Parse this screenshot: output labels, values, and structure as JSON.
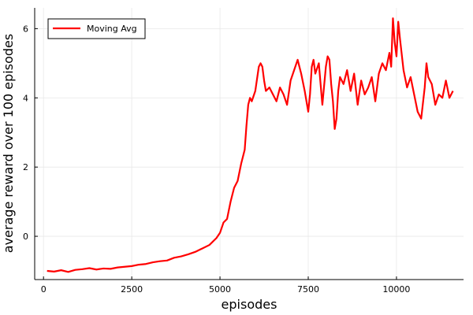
{
  "chart_data": {
    "type": "line",
    "title": "",
    "xlabel": "episodes",
    "ylabel": "average reward over 100 episodes",
    "xlim": [
      -250,
      11900
    ],
    "ylim": [
      -1.25,
      6.6
    ],
    "xticks": [
      0,
      2500,
      5000,
      7500,
      10000
    ],
    "xtick_labels": [
      "0",
      "2500",
      "5000",
      "7500",
      "10000"
    ],
    "yticks": [
      0,
      2,
      4,
      6
    ],
    "ytick_labels": [
      "0",
      "2",
      "4",
      "6"
    ],
    "grid": true,
    "legend_position": "top-left",
    "series": [
      {
        "name": "Moving Avg",
        "color": "#ff0000",
        "x": [
          100,
          300,
          500,
          700,
          900,
          1100,
          1300,
          1500,
          1700,
          1900,
          2100,
          2300,
          2500,
          2700,
          2900,
          3100,
          3300,
          3500,
          3700,
          3900,
          4100,
          4300,
          4500,
          4700,
          4900,
          5000,
          5100,
          5200,
          5300,
          5400,
          5500,
          5600,
          5700,
          5750,
          5800,
          5850,
          5900,
          6000,
          6100,
          6150,
          6200,
          6250,
          6300,
          6400,
          6500,
          6600,
          6700,
          6800,
          6900,
          7000,
          7100,
          7200,
          7300,
          7400,
          7500,
          7550,
          7600,
          7650,
          7700,
          7800,
          7900,
          8000,
          8050,
          8100,
          8150,
          8200,
          8250,
          8300,
          8350,
          8400,
          8500,
          8600,
          8700,
          8800,
          8900,
          9000,
          9100,
          9200,
          9300,
          9400,
          9500,
          9600,
          9700,
          9800,
          9850,
          9900,
          9950,
          10000,
          10050,
          10100,
          10200,
          10300,
          10400,
          10500,
          10600,
          10700,
          10800,
          10850,
          10900,
          11000,
          11100,
          11200,
          11300,
          11400,
          11500,
          11600
        ],
        "y": [
          -1.0,
          -1.02,
          -0.98,
          -1.03,
          -0.97,
          -0.95,
          -0.92,
          -0.96,
          -0.93,
          -0.94,
          -0.9,
          -0.88,
          -0.86,
          -0.82,
          -0.8,
          -0.75,
          -0.72,
          -0.7,
          -0.62,
          -0.58,
          -0.52,
          -0.45,
          -0.35,
          -0.25,
          -0.05,
          0.1,
          0.4,
          0.5,
          1.0,
          1.4,
          1.6,
          2.1,
          2.5,
          3.2,
          3.8,
          4.0,
          3.9,
          4.2,
          4.9,
          5.0,
          4.9,
          4.5,
          4.2,
          4.3,
          4.1,
          3.9,
          4.3,
          4.1,
          3.8,
          4.5,
          4.8,
          5.1,
          4.7,
          4.2,
          3.6,
          4.1,
          4.9,
          5.1,
          4.7,
          5.0,
          3.8,
          4.9,
          5.2,
          5.1,
          4.4,
          3.9,
          3.1,
          3.4,
          4.2,
          4.6,
          4.4,
          4.8,
          4.2,
          4.7,
          3.8,
          4.5,
          4.1,
          4.3,
          4.6,
          3.9,
          4.7,
          5.0,
          4.8,
          5.3,
          4.9,
          6.3,
          5.6,
          5.2,
          6.2,
          5.7,
          4.8,
          4.3,
          4.6,
          4.1,
          3.6,
          3.4,
          4.3,
          5.0,
          4.6,
          4.4,
          3.8,
          4.1,
          4.0,
          4.5,
          4.0,
          4.2
        ]
      }
    ]
  }
}
